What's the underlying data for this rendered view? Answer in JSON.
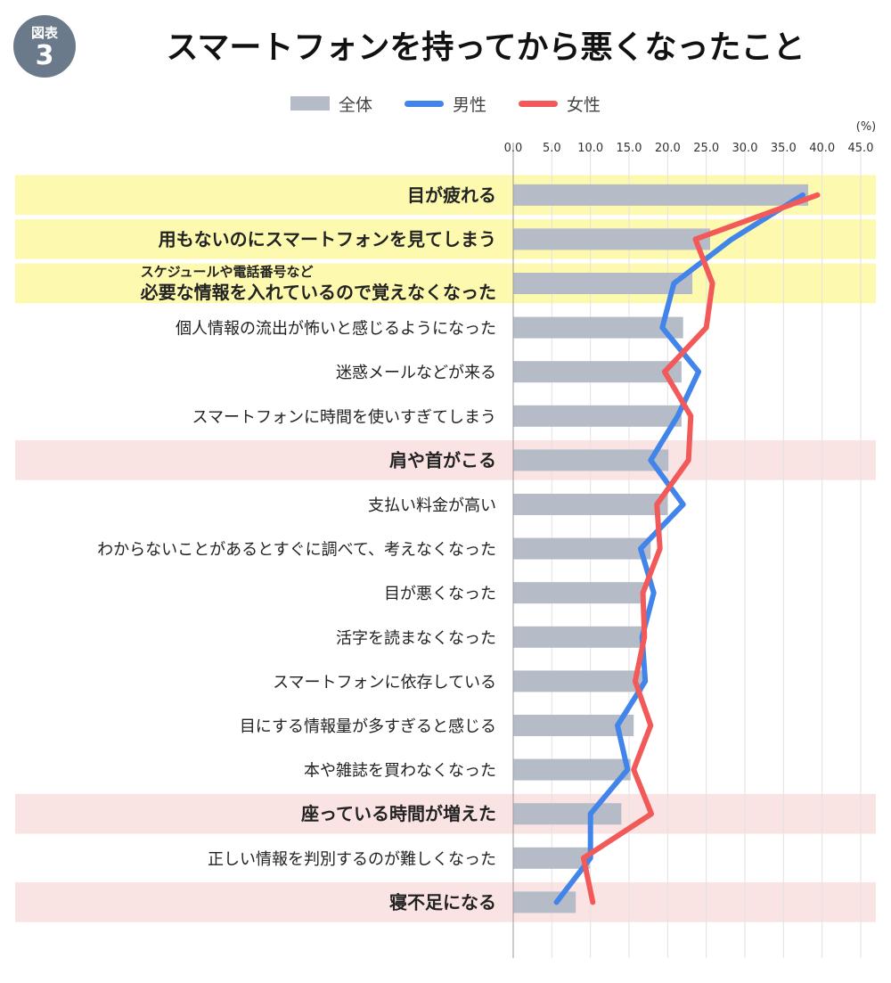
{
  "badge": {
    "line1": "図表",
    "line2": "3"
  },
  "title": "スマートフォンを持ってから悪くなったこと",
  "colors": {
    "bar": "#b5bcc8",
    "male": "#4285ea",
    "female": "#f25a5a",
    "highlight_yellow": "#fdfab0",
    "highlight_pink": "#fae3e3",
    "axis": "#9a9a9a"
  },
  "chart_data": {
    "type": "bar",
    "orientation": "horizontal",
    "unit_label": "(%)",
    "xlim": [
      0,
      45
    ],
    "ticks": [
      "0.0",
      "5.0",
      "10.0",
      "15.0",
      "20.0",
      "25.0",
      "30.0",
      "35.0",
      "40.0",
      "45.0"
    ],
    "grid": true,
    "legend_position": "top-center",
    "categories": [
      {
        "label": "目が疲れる",
        "bold": true,
        "highlight": "yellow"
      },
      {
        "label": "用もないのにスマートフォンを見てしまう",
        "bold": true,
        "highlight": "yellow"
      },
      {
        "label": "必要な情報を入れているので覚えなくなった",
        "sublabel": "スケジュールや電話番号など",
        "bold": true,
        "highlight": "yellow"
      },
      {
        "label": "個人情報の流出が怖いと感じるようになった"
      },
      {
        "label": "迷惑メールなどが来る"
      },
      {
        "label": "スマートフォンに時間を使いすぎてしまう"
      },
      {
        "label": "肩や首がこる",
        "bold": true,
        "highlight": "pink"
      },
      {
        "label": "支払い料金が高い"
      },
      {
        "label": "わからないことがあるとすぐに調べて、考えなくなった"
      },
      {
        "label": "目が悪くなった"
      },
      {
        "label": "活字を読まなくなった"
      },
      {
        "label": "スマートフォンに依存している"
      },
      {
        "label": "目にする情報量が多すぎると感じる"
      },
      {
        "label": "本や雑誌を買わなくなった"
      },
      {
        "label": "座っている時間が増えた",
        "bold": true,
        "highlight": "pink"
      },
      {
        "label": "正しい情報を判別するのが難しくなった"
      },
      {
        "label": "寝不足になる",
        "bold": true,
        "highlight": "pink"
      }
    ],
    "series": [
      {
        "name": "全体",
        "kind": "bar",
        "values": [
          38.2,
          25.5,
          23.2,
          22.0,
          21.8,
          21.8,
          20.1,
          20.0,
          17.8,
          17.0,
          17.0,
          16.8,
          15.6,
          15.2,
          14.0,
          9.9,
          8.1
        ]
      },
      {
        "name": "男性",
        "kind": "line",
        "values": [
          37.5,
          28.3,
          20.8,
          19.3,
          24.0,
          21.3,
          17.8,
          22.0,
          16.5,
          18.2,
          16.7,
          17.1,
          13.5,
          14.8,
          10.0,
          10.0,
          5.6
        ]
      },
      {
        "name": "女性",
        "kind": "line",
        "values": [
          39.4,
          23.6,
          25.8,
          25.0,
          19.6,
          23.0,
          22.7,
          18.6,
          19.0,
          16.8,
          17.0,
          15.8,
          17.8,
          15.6,
          17.9,
          9.1,
          10.3
        ]
      }
    ]
  }
}
